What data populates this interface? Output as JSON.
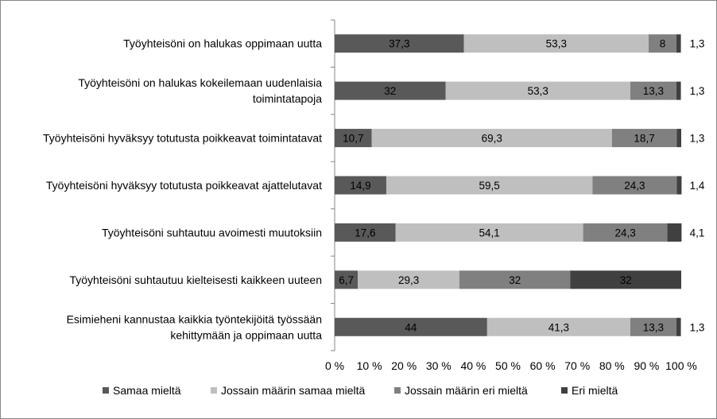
{
  "chart_data": {
    "type": "bar",
    "orientation": "horizontal",
    "stacked": true,
    "categories": [
      [
        "Työyhteisöni on halukas oppimaan uutta"
      ],
      [
        "Työyhteisöni on halukas kokeilemaan uudenlaisia",
        "toimintatapoja"
      ],
      [
        "Työyhteisöni hyväksyy totutusta poikkeavat toimintatavat"
      ],
      [
        "Työyhteisöni hyväksyy totutusta poikkeavat ajattelutavat"
      ],
      [
        "Työyhteisöni suhtautuu avoimesti muutoksiin"
      ],
      [
        "Työyhteisöni suhtautuu kielteisesti kaikkeen uuteen"
      ],
      [
        "Esimieheni kannustaa kaikkia työntekijöitä työssään",
        "kehittymään ja oppimaan uutta"
      ]
    ],
    "series": [
      {
        "name": "Samaa mieltä",
        "color": "#595959",
        "label_color": "#000000",
        "values": [
          37.3,
          32,
          10.7,
          14.9,
          17.6,
          6.7,
          44
        ],
        "labels": [
          "37,3",
          "32",
          "10,7",
          "14,9",
          "17,6",
          "6,7",
          "44"
        ]
      },
      {
        "name": "Jossain määrin samaa mieltä",
        "color": "#bfbfbf",
        "label_color": "#000000",
        "values": [
          53.3,
          53.3,
          69.3,
          59.5,
          54.1,
          29.3,
          41.3
        ],
        "labels": [
          "53,3",
          "53,3",
          "69,3",
          "59,5",
          "54,1",
          "29,3",
          "41,3"
        ]
      },
      {
        "name": "Jossain määrin eri mieltä",
        "color": "#808080",
        "label_color": "#000000",
        "values": [
          8,
          13.3,
          18.7,
          24.3,
          24.3,
          32,
          13.3
        ],
        "labels": [
          "8",
          "13,3",
          "18,7",
          "24,3",
          "24,3",
          "32",
          "13,3"
        ]
      },
      {
        "name": "Eri mieltä",
        "color": "#404040",
        "label_color": "#000000",
        "values": [
          1.3,
          1.3,
          1.3,
          1.4,
          4.1,
          32,
          1.3
        ],
        "labels": [
          "1,3",
          "1,3",
          "1,3",
          "1,4",
          "4,1",
          "32",
          "1,3"
        ],
        "label_outside": [
          true,
          true,
          true,
          true,
          true,
          false,
          true
        ]
      }
    ],
    "xlim": [
      0,
      100
    ],
    "xticks": [
      0,
      10,
      20,
      30,
      40,
      50,
      60,
      70,
      80,
      90,
      100
    ],
    "xtick_labels": [
      "0 %",
      "10 %",
      "20 %",
      "30 %",
      "40 %",
      "50 %",
      "60 %",
      "70 %",
      "80 %",
      "90 %",
      "100 %"
    ],
    "grid": false,
    "legend": "bottom",
    "title": "",
    "xlabel": "",
    "ylabel": ""
  }
}
